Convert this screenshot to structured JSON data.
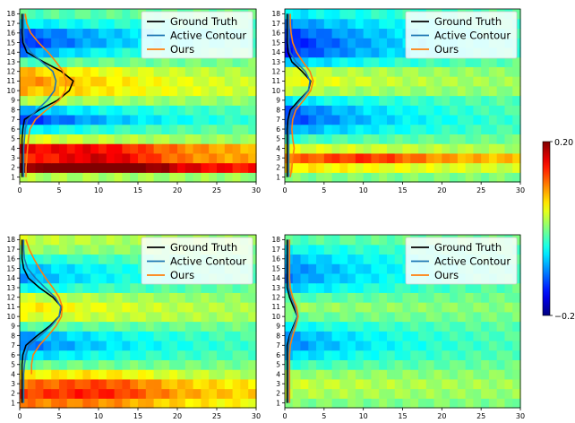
{
  "legend": {
    "items": [
      {
        "label": "Ground Truth",
        "color": "#000000"
      },
      {
        "label": "Active Contour",
        "color": "#1f77b4"
      },
      {
        "label": "Ours",
        "color": "#ff7f0e"
      }
    ],
    "placement": "top-right"
  },
  "colorbar": {
    "colormap": "jet",
    "min": -0.2,
    "max": 0.2,
    "tick_labels": [
      "0.20",
      "−0.20"
    ]
  },
  "chart_data": [
    {
      "type": "heatmap",
      "panel": "top-left",
      "x_ticks": [
        0,
        5,
        10,
        15,
        20,
        25,
        30
      ],
      "y_ticks": [
        1,
        2,
        3,
        4,
        5,
        6,
        7,
        8,
        9,
        10,
        11,
        12,
        13,
        14,
        15,
        16,
        17,
        18
      ],
      "xlim": [
        0,
        30
      ],
      "ylim": [
        0.5,
        18.5
      ],
      "profile": [
        0.02,
        0.18,
        0.12,
        0.15,
        0.04,
        -0.06,
        -0.14,
        -0.08,
        0.02,
        0.08,
        0.1,
        0.08,
        -0.02,
        -0.1,
        -0.14,
        -0.12,
        -0.06,
        -0.02
      ],
      "decay": [
        0.22,
        0.08,
        0.12,
        0.22,
        0.5,
        0.55,
        0.55,
        0.5,
        0.35,
        0.35,
        0.45,
        0.55,
        0.65,
        0.7,
        0.55,
        0.45,
        0.4,
        0.35
      ],
      "hump": [
        0.0,
        0.08,
        0.06,
        0.03,
        0,
        0,
        0,
        0,
        0,
        0,
        0,
        0,
        0,
        0,
        0,
        0,
        0,
        0
      ],
      "ground_truth": [
        [
          0.3,
          1
        ],
        [
          0.3,
          2
        ],
        [
          0.3,
          3
        ],
        [
          0.3,
          4
        ],
        [
          0.3,
          5
        ],
        [
          0.4,
          6
        ],
        [
          0.6,
          7
        ],
        [
          2.5,
          8
        ],
        [
          4.8,
          9
        ],
        [
          6.3,
          10
        ],
        [
          6.8,
          11
        ],
        [
          5.3,
          12
        ],
        [
          3.0,
          13
        ],
        [
          0.9,
          14
        ],
        [
          0.4,
          15
        ],
        [
          0.3,
          16
        ],
        [
          0.3,
          17
        ],
        [
          0.3,
          18
        ]
      ],
      "active_contour": [
        [
          0.5,
          1
        ],
        [
          0.5,
          2
        ],
        [
          0.5,
          3
        ],
        [
          0.5,
          4
        ],
        [
          0.6,
          5
        ],
        [
          0.7,
          6
        ],
        [
          1.0,
          7
        ],
        [
          2.2,
          8
        ],
        [
          3.5,
          9
        ],
        [
          4.4,
          10
        ],
        [
          4.6,
          11
        ],
        [
          4.2,
          12
        ],
        [
          2.8,
          13
        ],
        [
          1.4,
          14
        ],
        [
          0.6,
          15
        ],
        [
          0.5,
          16
        ],
        [
          0.5,
          17
        ],
        [
          0.5,
          18
        ]
      ],
      "ours": [
        [
          0.8,
          1
        ],
        [
          0.8,
          2
        ],
        [
          0.9,
          3
        ],
        [
          1.0,
          4
        ],
        [
          1.1,
          5
        ],
        [
          1.3,
          6
        ],
        [
          2.0,
          7
        ],
        [
          3.4,
          8
        ],
        [
          5.0,
          9
        ],
        [
          5.8,
          10
        ],
        [
          5.9,
          11
        ],
        [
          5.5,
          12
        ],
        [
          4.6,
          13
        ],
        [
          3.6,
          14
        ],
        [
          2.4,
          15
        ],
        [
          1.4,
          16
        ],
        [
          0.9,
          17
        ],
        [
          0.7,
          18
        ]
      ]
    },
    {
      "type": "heatmap",
      "panel": "top-right",
      "x_ticks": [
        0,
        5,
        10,
        15,
        20,
        25,
        30
      ],
      "y_ticks": [
        1,
        2,
        3,
        4,
        5,
        6,
        7,
        8,
        9,
        10,
        11,
        12,
        13,
        14,
        15,
        16,
        17,
        18
      ],
      "xlim": [
        0,
        30
      ],
      "ylim": [
        0.5,
        18.5
      ],
      "profile": [
        0.0,
        0.06,
        0.1,
        0.04,
        -0.03,
        -0.09,
        -0.13,
        -0.12,
        -0.06,
        0.02,
        0.05,
        0.03,
        -0.08,
        -0.14,
        -0.15,
        -0.13,
        -0.1,
        -0.06
      ],
      "decay": [
        0.3,
        0.25,
        0.1,
        0.3,
        0.5,
        0.5,
        0.55,
        0.6,
        0.45,
        0.4,
        0.5,
        0.55,
        0.6,
        0.55,
        0.55,
        0.5,
        0.5,
        0.45
      ],
      "hump": [
        0,
        0,
        0.04,
        0,
        0,
        0,
        0,
        0,
        0,
        0,
        0,
        0,
        0,
        0,
        0,
        0,
        0,
        0
      ],
      "ground_truth": [
        [
          0.3,
          1
        ],
        [
          0.3,
          2
        ],
        [
          0.3,
          3
        ],
        [
          0.3,
          4
        ],
        [
          0.3,
          5
        ],
        [
          0.3,
          6
        ],
        [
          0.4,
          7
        ],
        [
          0.7,
          8
        ],
        [
          1.8,
          9
        ],
        [
          3.0,
          10
        ],
        [
          3.3,
          11
        ],
        [
          2.2,
          12
        ],
        [
          0.9,
          13
        ],
        [
          0.4,
          14
        ],
        [
          0.3,
          15
        ],
        [
          0.3,
          16
        ],
        [
          0.3,
          17
        ],
        [
          0.3,
          18
        ]
      ],
      "active_contour": [
        [
          0.5,
          1
        ],
        [
          0.5,
          2
        ],
        [
          0.5,
          3
        ],
        [
          0.5,
          4
        ],
        [
          0.5,
          5
        ],
        [
          0.5,
          6
        ],
        [
          0.6,
          7
        ],
        [
          1.0,
          8
        ],
        [
          2.0,
          9
        ],
        [
          3.0,
          10
        ],
        [
          3.2,
          11
        ],
        [
          2.6,
          12
        ],
        [
          1.4,
          13
        ],
        [
          0.7,
          14
        ],
        [
          0.5,
          15
        ],
        [
          0.5,
          16
        ],
        [
          0.5,
          17
        ],
        [
          0.5,
          18
        ]
      ],
      "ours": [
        [
          0.7,
          1
        ],
        [
          0.9,
          2
        ],
        [
          1.0,
          3
        ],
        [
          1.2,
          4
        ],
        [
          1.0,
          5
        ],
        [
          0.9,
          6
        ],
        [
          1.0,
          7
        ],
        [
          1.4,
          8
        ],
        [
          2.4,
          9
        ],
        [
          3.3,
          10
        ],
        [
          3.6,
          11
        ],
        [
          3.2,
          12
        ],
        [
          2.3,
          13
        ],
        [
          1.5,
          14
        ],
        [
          1.0,
          15
        ],
        [
          0.8,
          16
        ],
        [
          0.7,
          17
        ],
        [
          0.7,
          18
        ]
      ]
    },
    {
      "type": "heatmap",
      "panel": "bottom-left",
      "x_ticks": [
        0,
        5,
        10,
        15,
        20,
        25,
        30
      ],
      "y_ticks": [
        1,
        2,
        3,
        4,
        5,
        6,
        7,
        8,
        9,
        10,
        11,
        12,
        13,
        14,
        15,
        16,
        17,
        18
      ],
      "xlim": [
        0,
        30
      ],
      "ylim": [
        0.5,
        18.5
      ],
      "profile": [
        0.1,
        0.12,
        0.1,
        0.05,
        -0.01,
        -0.07,
        -0.11,
        -0.09,
        -0.02,
        0.04,
        0.06,
        0.03,
        -0.05,
        -0.09,
        -0.08,
        -0.04,
        0.01,
        0.03
      ],
      "decay": [
        0.25,
        0.2,
        0.2,
        0.3,
        0.4,
        0.45,
        0.5,
        0.5,
        0.4,
        0.35,
        0.45,
        0.5,
        0.55,
        0.55,
        0.5,
        0.45,
        0.45,
        0.4
      ],
      "hump": [
        0.02,
        0.04,
        0.04,
        0.02,
        0,
        0,
        0,
        0,
        0,
        0,
        0,
        0,
        0,
        0,
        0,
        0,
        0,
        0
      ],
      "ground_truth": [
        [
          0.3,
          1
        ],
        [
          0.3,
          2
        ],
        [
          0.3,
          3
        ],
        [
          0.3,
          4
        ],
        [
          0.3,
          5
        ],
        [
          0.4,
          6
        ],
        [
          0.8,
          7
        ],
        [
          2.2,
          8
        ],
        [
          3.8,
          9
        ],
        [
          5.0,
          10
        ],
        [
          5.3,
          11
        ],
        [
          4.2,
          12
        ],
        [
          2.5,
          13
        ],
        [
          1.1,
          14
        ],
        [
          0.5,
          15
        ],
        [
          0.3,
          16
        ],
        [
          0.3,
          17
        ],
        [
          0.3,
          18
        ]
      ],
      "active_contour": [
        [
          0.5,
          1
        ],
        [
          0.5,
          2
        ],
        [
          0.5,
          3
        ],
        [
          0.5,
          4
        ],
        [
          0.6,
          5
        ],
        [
          0.8,
          6
        ],
        [
          1.2,
          7
        ],
        [
          2.6,
          8
        ],
        [
          4.0,
          9
        ],
        [
          5.0,
          10
        ],
        [
          5.2,
          11
        ],
        [
          4.5,
          12
        ],
        [
          3.2,
          13
        ],
        [
          2.0,
          14
        ],
        [
          1.0,
          15
        ],
        [
          0.6,
          16
        ],
        [
          0.5,
          17
        ],
        [
          0.5,
          18
        ]
      ],
      "ours": [
        [
          1.5,
          4
        ],
        [
          1.5,
          5
        ],
        [
          1.7,
          6
        ],
        [
          2.5,
          7
        ],
        [
          3.6,
          8
        ],
        [
          4.6,
          9
        ],
        [
          5.3,
          10
        ],
        [
          5.4,
          11
        ],
        [
          5.0,
          12
        ],
        [
          4.2,
          13
        ],
        [
          3.3,
          14
        ],
        [
          2.5,
          15
        ],
        [
          1.8,
          16
        ],
        [
          1.2,
          17
        ],
        [
          0.8,
          18
        ]
      ]
    },
    {
      "type": "heatmap",
      "panel": "bottom-right",
      "x_ticks": [
        0,
        5,
        10,
        15,
        20,
        25,
        30
      ],
      "y_ticks": [
        1,
        2,
        3,
        4,
        5,
        6,
        7,
        8,
        9,
        10,
        11,
        12,
        13,
        14,
        15,
        16,
        17,
        18
      ],
      "xlim": [
        0,
        30
      ],
      "ylim": [
        0.5,
        18.5
      ],
      "profile": [
        0.0,
        0.02,
        0.03,
        0.01,
        -0.03,
        -0.07,
        -0.1,
        -0.09,
        -0.05,
        -0.01,
        0.01,
        -0.02,
        -0.07,
        -0.1,
        -0.1,
        -0.08,
        -0.05,
        -0.02
      ],
      "decay": [
        0.35,
        0.3,
        0.3,
        0.35,
        0.45,
        0.5,
        0.55,
        0.55,
        0.45,
        0.4,
        0.45,
        0.5,
        0.55,
        0.55,
        0.5,
        0.45,
        0.4,
        0.4
      ],
      "hump": [
        0,
        0,
        0,
        0,
        0,
        0,
        0,
        0,
        0,
        0,
        0,
        0,
        0,
        0,
        0,
        0,
        0,
        0
      ],
      "ground_truth": [
        [
          0.3,
          1
        ],
        [
          0.3,
          2
        ],
        [
          0.3,
          3
        ],
        [
          0.3,
          4
        ],
        [
          0.3,
          5
        ],
        [
          0.3,
          6
        ],
        [
          0.3,
          7
        ],
        [
          0.6,
          8
        ],
        [
          1.1,
          9
        ],
        [
          1.6,
          10
        ],
        [
          1.1,
          11
        ],
        [
          0.6,
          12
        ],
        [
          0.3,
          13
        ],
        [
          0.3,
          14
        ],
        [
          0.3,
          15
        ],
        [
          0.3,
          16
        ],
        [
          0.3,
          17
        ],
        [
          0.3,
          18
        ]
      ],
      "active_contour": [
        [
          0.5,
          1
        ],
        [
          0.5,
          2
        ],
        [
          0.5,
          3
        ],
        [
          0.5,
          4
        ],
        [
          0.5,
          5
        ],
        [
          0.5,
          6
        ],
        [
          0.5,
          7
        ],
        [
          0.7,
          8
        ],
        [
          1.2,
          9
        ],
        [
          1.6,
          10
        ],
        [
          1.3,
          11
        ],
        [
          0.8,
          12
        ],
        [
          0.5,
          13
        ],
        [
          0.5,
          14
        ],
        [
          0.5,
          15
        ],
        [
          0.5,
          16
        ],
        [
          0.5,
          17
        ],
        [
          0.5,
          18
        ]
      ],
      "ours": [
        [
          0.6,
          1
        ],
        [
          0.6,
          2
        ],
        [
          0.6,
          3
        ],
        [
          0.6,
          4
        ],
        [
          0.6,
          5
        ],
        [
          0.6,
          6
        ],
        [
          0.7,
          7
        ],
        [
          1.0,
          8
        ],
        [
          1.4,
          9
        ],
        [
          1.7,
          10
        ],
        [
          1.5,
          11
        ],
        [
          1.0,
          12
        ],
        [
          0.7,
          13
        ],
        [
          0.6,
          14
        ],
        [
          0.6,
          15
        ],
        [
          0.6,
          16
        ],
        [
          0.6,
          17
        ],
        [
          0.6,
          18
        ]
      ]
    }
  ]
}
